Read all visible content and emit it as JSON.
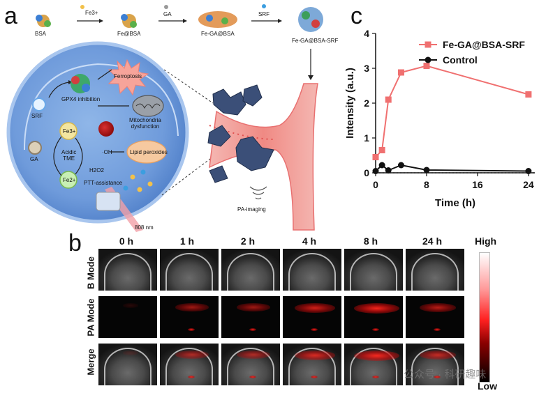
{
  "panels": {
    "a": "a",
    "b": "b",
    "c": "c"
  },
  "panel_a": {
    "steps": [
      "BSA",
      "Fe@BSA",
      "Fe-GA@BSA",
      "Fe-GA@BSA-SRF"
    ],
    "arrow_labels": [
      "Fe3+",
      "GA",
      "SRF"
    ],
    "cell": {
      "srf": "SRF",
      "ga": "GA",
      "gpx4": "GPX4 inhibition",
      "ferroptosis": "Ferroptosis",
      "mito": "Mitochondria\ndysfunction",
      "fe3": "Fe3+",
      "fe2": "Fe2+",
      "acidic": "Acidic\nTME",
      "oh": "·OH",
      "lipid": "Lipid peroxides",
      "h2o2": "H2O2",
      "ptt": "PTT-assistance",
      "laser": "808 nm"
    },
    "pa_imaging": "PA-imaging"
  },
  "panel_b": {
    "time_labels": [
      "0 h",
      "1 h",
      "2 h",
      "4 h",
      "8 h",
      "24 h"
    ],
    "row_labels": [
      "B Mode",
      "PA Mode",
      "Merge"
    ],
    "scale_high": "High",
    "scale_low": "Low",
    "colors": {
      "pa": "#e81e1e"
    }
  },
  "chart_data": {
    "type": "line",
    "xlabel": "Time (h)",
    "ylabel": "Intensity (a.u.)",
    "xlim": [
      0,
      25
    ],
    "ylim": [
      0,
      4
    ],
    "xticks": [
      0,
      8,
      16,
      24
    ],
    "yticks": [
      0,
      1,
      2,
      3,
      4
    ],
    "legend_position": "top-right",
    "series": [
      {
        "name": "Fe-GA@BSA-SRF",
        "color": "#f07070",
        "marker": "square",
        "x": [
          0,
          1,
          2,
          4,
          8,
          24
        ],
        "y": [
          0.45,
          0.65,
          2.1,
          2.88,
          3.07,
          2.25
        ]
      },
      {
        "name": "Control",
        "color": "#111111",
        "marker": "circle",
        "x": [
          0,
          1,
          2,
          4,
          8,
          24
        ],
        "y": [
          0.05,
          0.22,
          0.07,
          0.22,
          0.08,
          0.05
        ]
      }
    ]
  },
  "watermark": "公众号 · 科研趣味"
}
